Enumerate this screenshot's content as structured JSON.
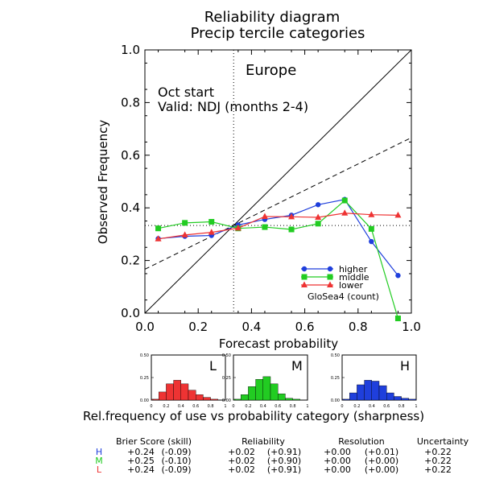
{
  "chart_data": {
    "type": "line",
    "title": "Reliability diagram",
    "subtitle": "Precip tercile categories",
    "region": "Europe",
    "start_label": "Oct start",
    "valid_label": "Valid: NDJ (months 2-4)",
    "xlabel": "Forecast probability",
    "ylabel": "Observed Frequency",
    "xlim": [
      0,
      1
    ],
    "ylim": [
      0,
      1
    ],
    "x_ticks": [
      "0.0",
      "0.2",
      "0.4",
      "0.6",
      "0.8",
      "1.0"
    ],
    "y_ticks": [
      "0.0",
      "0.2",
      "0.4",
      "0.6",
      "0.8",
      "1.0"
    ],
    "climatology": 0.333,
    "skill_line": {
      "intercept": 0.1667,
      "slope": 0.5
    },
    "legend_position": "bottom-right",
    "legend_note": "GloSea4 (count)",
    "series": [
      {
        "name": "higher",
        "color": "#1f3fdc",
        "marker": "circle",
        "x": [
          0.05,
          0.15,
          0.25,
          0.35,
          0.45,
          0.55,
          0.65,
          0.75,
          0.85,
          0.95
        ],
        "y": [
          0.283,
          0.292,
          0.295,
          0.335,
          0.356,
          0.372,
          0.412,
          0.432,
          0.272,
          0.143
        ]
      },
      {
        "name": "middle",
        "color": "#22cc22",
        "marker": "square",
        "x": [
          0.05,
          0.15,
          0.25,
          0.35,
          0.45,
          0.55,
          0.65,
          0.75,
          0.85,
          0.95
        ],
        "y": [
          0.322,
          0.343,
          0.347,
          0.322,
          0.327,
          0.318,
          0.34,
          0.428,
          0.32,
          -0.02
        ]
      },
      {
        "name": "lower",
        "color": "#ee3333",
        "marker": "triangle",
        "x": [
          0.05,
          0.15,
          0.25,
          0.35,
          0.45,
          0.55,
          0.65,
          0.75,
          0.85,
          0.95
        ],
        "y": [
          0.282,
          0.297,
          0.307,
          0.323,
          0.367,
          0.366,
          0.364,
          0.38,
          0.374,
          0.372
        ]
      }
    ],
    "sharpness": {
      "caption": "Rel.frequency of use vs probability category (sharpness)",
      "y_ticks": [
        "0.00",
        "0.25",
        "0.50"
      ],
      "x_ticks": [
        "0",
        "0.2",
        "0.4",
        "0.6",
        "0.8",
        "1"
      ],
      "panels": [
        {
          "label": "L",
          "color": "#ee3333",
          "values": [
            0.01,
            0.09,
            0.18,
            0.22,
            0.18,
            0.11,
            0.06,
            0.03,
            0.01,
            0.0
          ]
        },
        {
          "label": "M",
          "color": "#22cc22",
          "values": [
            0.01,
            0.06,
            0.15,
            0.23,
            0.26,
            0.18,
            0.07,
            0.02,
            0.01,
            0.0
          ]
        },
        {
          "label": "H",
          "color": "#1f3fdc",
          "values": [
            0.01,
            0.08,
            0.17,
            0.22,
            0.21,
            0.16,
            0.08,
            0.04,
            0.02,
            0.01
          ]
        }
      ]
    },
    "scores_table": {
      "headers": [
        "Brier Score (skill)",
        "Reliability",
        "Resolution",
        "Uncertainty"
      ],
      "rows": [
        {
          "label": "H",
          "color": "#1f3fdc",
          "brier": "+0.24",
          "brier_skill": "(-0.09)",
          "reliability": "+0.02",
          "reliability_skill": "(+0.91)",
          "resolution": "+0.00",
          "resolution_skill": "(+0.01)",
          "uncertainty": "+0.22"
        },
        {
          "label": "M",
          "color": "#22cc22",
          "brier": "+0.25",
          "brier_skill": "(-0.10)",
          "reliability": "+0.02",
          "reliability_skill": "(+0.90)",
          "resolution": "+0.00",
          "resolution_skill": "(+0.00)",
          "uncertainty": "+0.22"
        },
        {
          "label": "L",
          "color": "#ee3333",
          "brier": "+0.24",
          "brier_skill": "(-0.09)",
          "reliability": "+0.02",
          "reliability_skill": "(+0.91)",
          "resolution": "+0.00",
          "resolution_skill": "(+0.00)",
          "uncertainty": "+0.22"
        }
      ]
    }
  }
}
